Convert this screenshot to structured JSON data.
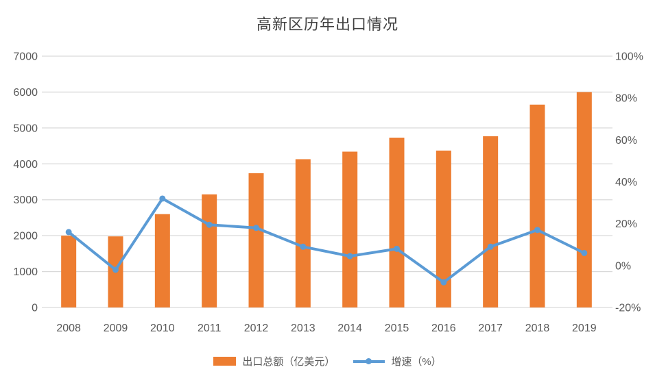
{
  "title": "高新区历年出口情况",
  "chart_data": {
    "type": "bar+line combo",
    "title": "高新区历年出口情况",
    "categories": [
      "2008",
      "2009",
      "2010",
      "2011",
      "2012",
      "2013",
      "2014",
      "2015",
      "2016",
      "2017",
      "2018",
      "2019"
    ],
    "series": [
      {
        "name": "出口总额（亿美元）",
        "type": "bar",
        "axis": "left",
        "color": "#ED7D31",
        "values": [
          2000,
          1980,
          2600,
          3150,
          3740,
          4130,
          4340,
          4730,
          4370,
          4770,
          5650,
          6000
        ]
      },
      {
        "name": "增速（%）",
        "type": "line",
        "axis": "right",
        "color": "#5B9BD5",
        "values": [
          16,
          -2,
          32,
          19.5,
          18,
          9,
          4.5,
          8,
          -8,
          9,
          17,
          6
        ]
      }
    ],
    "left_axis": {
      "min": 0,
      "max": 7000,
      "step": 1000,
      "ticks": [
        "0",
        "1000",
        "2000",
        "3000",
        "4000",
        "5000",
        "6000",
        "7000"
      ]
    },
    "right_axis": {
      "min": -20,
      "max": 100,
      "step": 20,
      "ticks": [
        "-20%",
        "0%",
        "20%",
        "40%",
        "60%",
        "80%",
        "100%"
      ]
    },
    "grid": true,
    "legend_position": "bottom"
  },
  "colors": {
    "bar": "#ED7D31",
    "line": "#5B9BD5",
    "gridline": "#D9D9D9",
    "axis_label": "#595959",
    "title": "#404040"
  }
}
